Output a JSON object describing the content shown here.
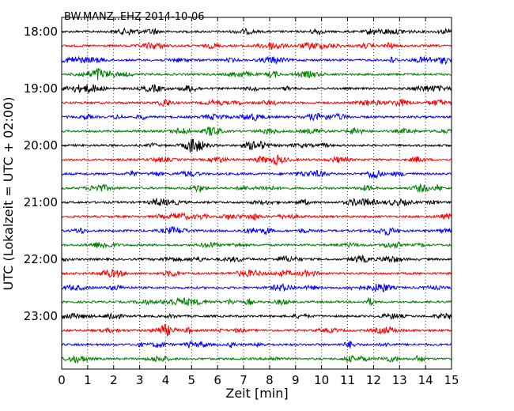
{
  "chart_data": {
    "type": "line",
    "title": "BW.MANZ..EHZ 2014-10-06",
    "xlabel": "Zeit  [min]",
    "ylabel": "UTC (Lokalzeit = UTC + 02:00)",
    "xlim": [
      0,
      15
    ],
    "x_ticks": [
      0,
      1,
      2,
      3,
      4,
      5,
      6,
      7,
      8,
      9,
      10,
      11,
      12,
      13,
      14,
      15
    ],
    "y_ticks": [
      "18:00",
      "19:00",
      "20:00",
      "21:00",
      "22:00",
      "23:00"
    ],
    "row_start_times": [
      "18:00",
      "18:15",
      "18:30",
      "18:45",
      "19:00",
      "19:15",
      "19:30",
      "19:45",
      "20:00",
      "20:15",
      "20:30",
      "20:45",
      "21:00",
      "21:15",
      "21:30",
      "21:45",
      "22:00",
      "22:15",
      "22:30",
      "22:45",
      "23:00",
      "23:15",
      "23:30",
      "23:45"
    ],
    "trace_colors": [
      "#000000",
      "#ff0000",
      "#0000ff",
      "#007f00"
    ],
    "grid": "vertical-dotted",
    "legend": "none"
  }
}
